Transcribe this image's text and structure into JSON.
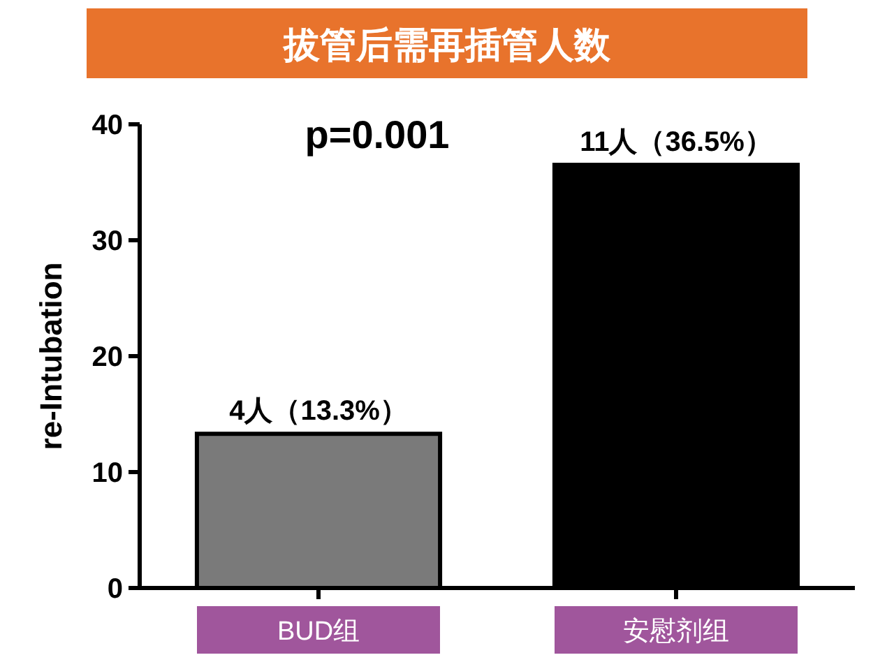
{
  "chart_data": {
    "type": "bar",
    "title": "拔管后需再插管人数",
    "ylabel": "re-Intubation",
    "categories": [
      "BUD组",
      "安慰剂组"
    ],
    "values": [
      13.3,
      36.5
    ],
    "colors": [
      "#7a7a7a",
      "#000000"
    ],
    "value_labels": [
      "4人（13.3%）",
      "11人（36.5%）"
    ],
    "ylim": [
      0,
      40
    ],
    "yticks": [
      0,
      10,
      20,
      30,
      40
    ],
    "annotations": [
      "p=0.001"
    ],
    "grid": false
  }
}
